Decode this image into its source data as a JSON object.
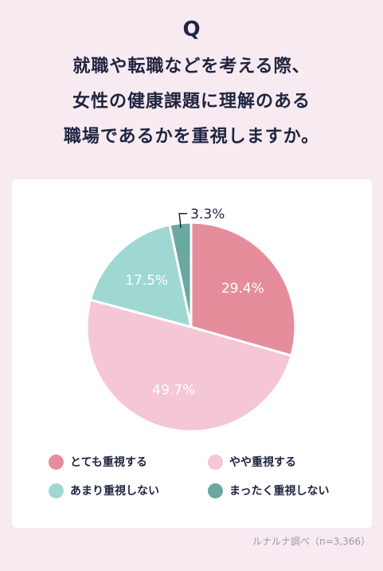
{
  "header": {
    "q_mark": "Q",
    "question_lines": [
      "就職や転職などを考える際、",
      "女性の健康課題に理解のある",
      "職場であるかを重視しますか。"
    ]
  },
  "chart_data": {
    "type": "pie",
    "start_angle": "12 o'clock",
    "direction": "clockwise",
    "slices": [
      {
        "label": "とても重視する",
        "value": 29.4,
        "display": "29.4%",
        "color": "#e58d9b",
        "label_color": "#ffffff"
      },
      {
        "label": "やや重視する",
        "value": 49.7,
        "display": "49.7%",
        "color": "#f4c6d6",
        "label_color": "#ffffff"
      },
      {
        "label": "あまり重視しない",
        "value": 17.5,
        "display": "17.5%",
        "color": "#9fd8d2",
        "label_color": "#ffffff"
      },
      {
        "label": "まったく重視しない",
        "value": 3.3,
        "display": "3.3%",
        "color": "#6aa8a0",
        "label_color": "#1f2440"
      }
    ]
  },
  "source": "ルナルナ調べ（n=3,366）"
}
